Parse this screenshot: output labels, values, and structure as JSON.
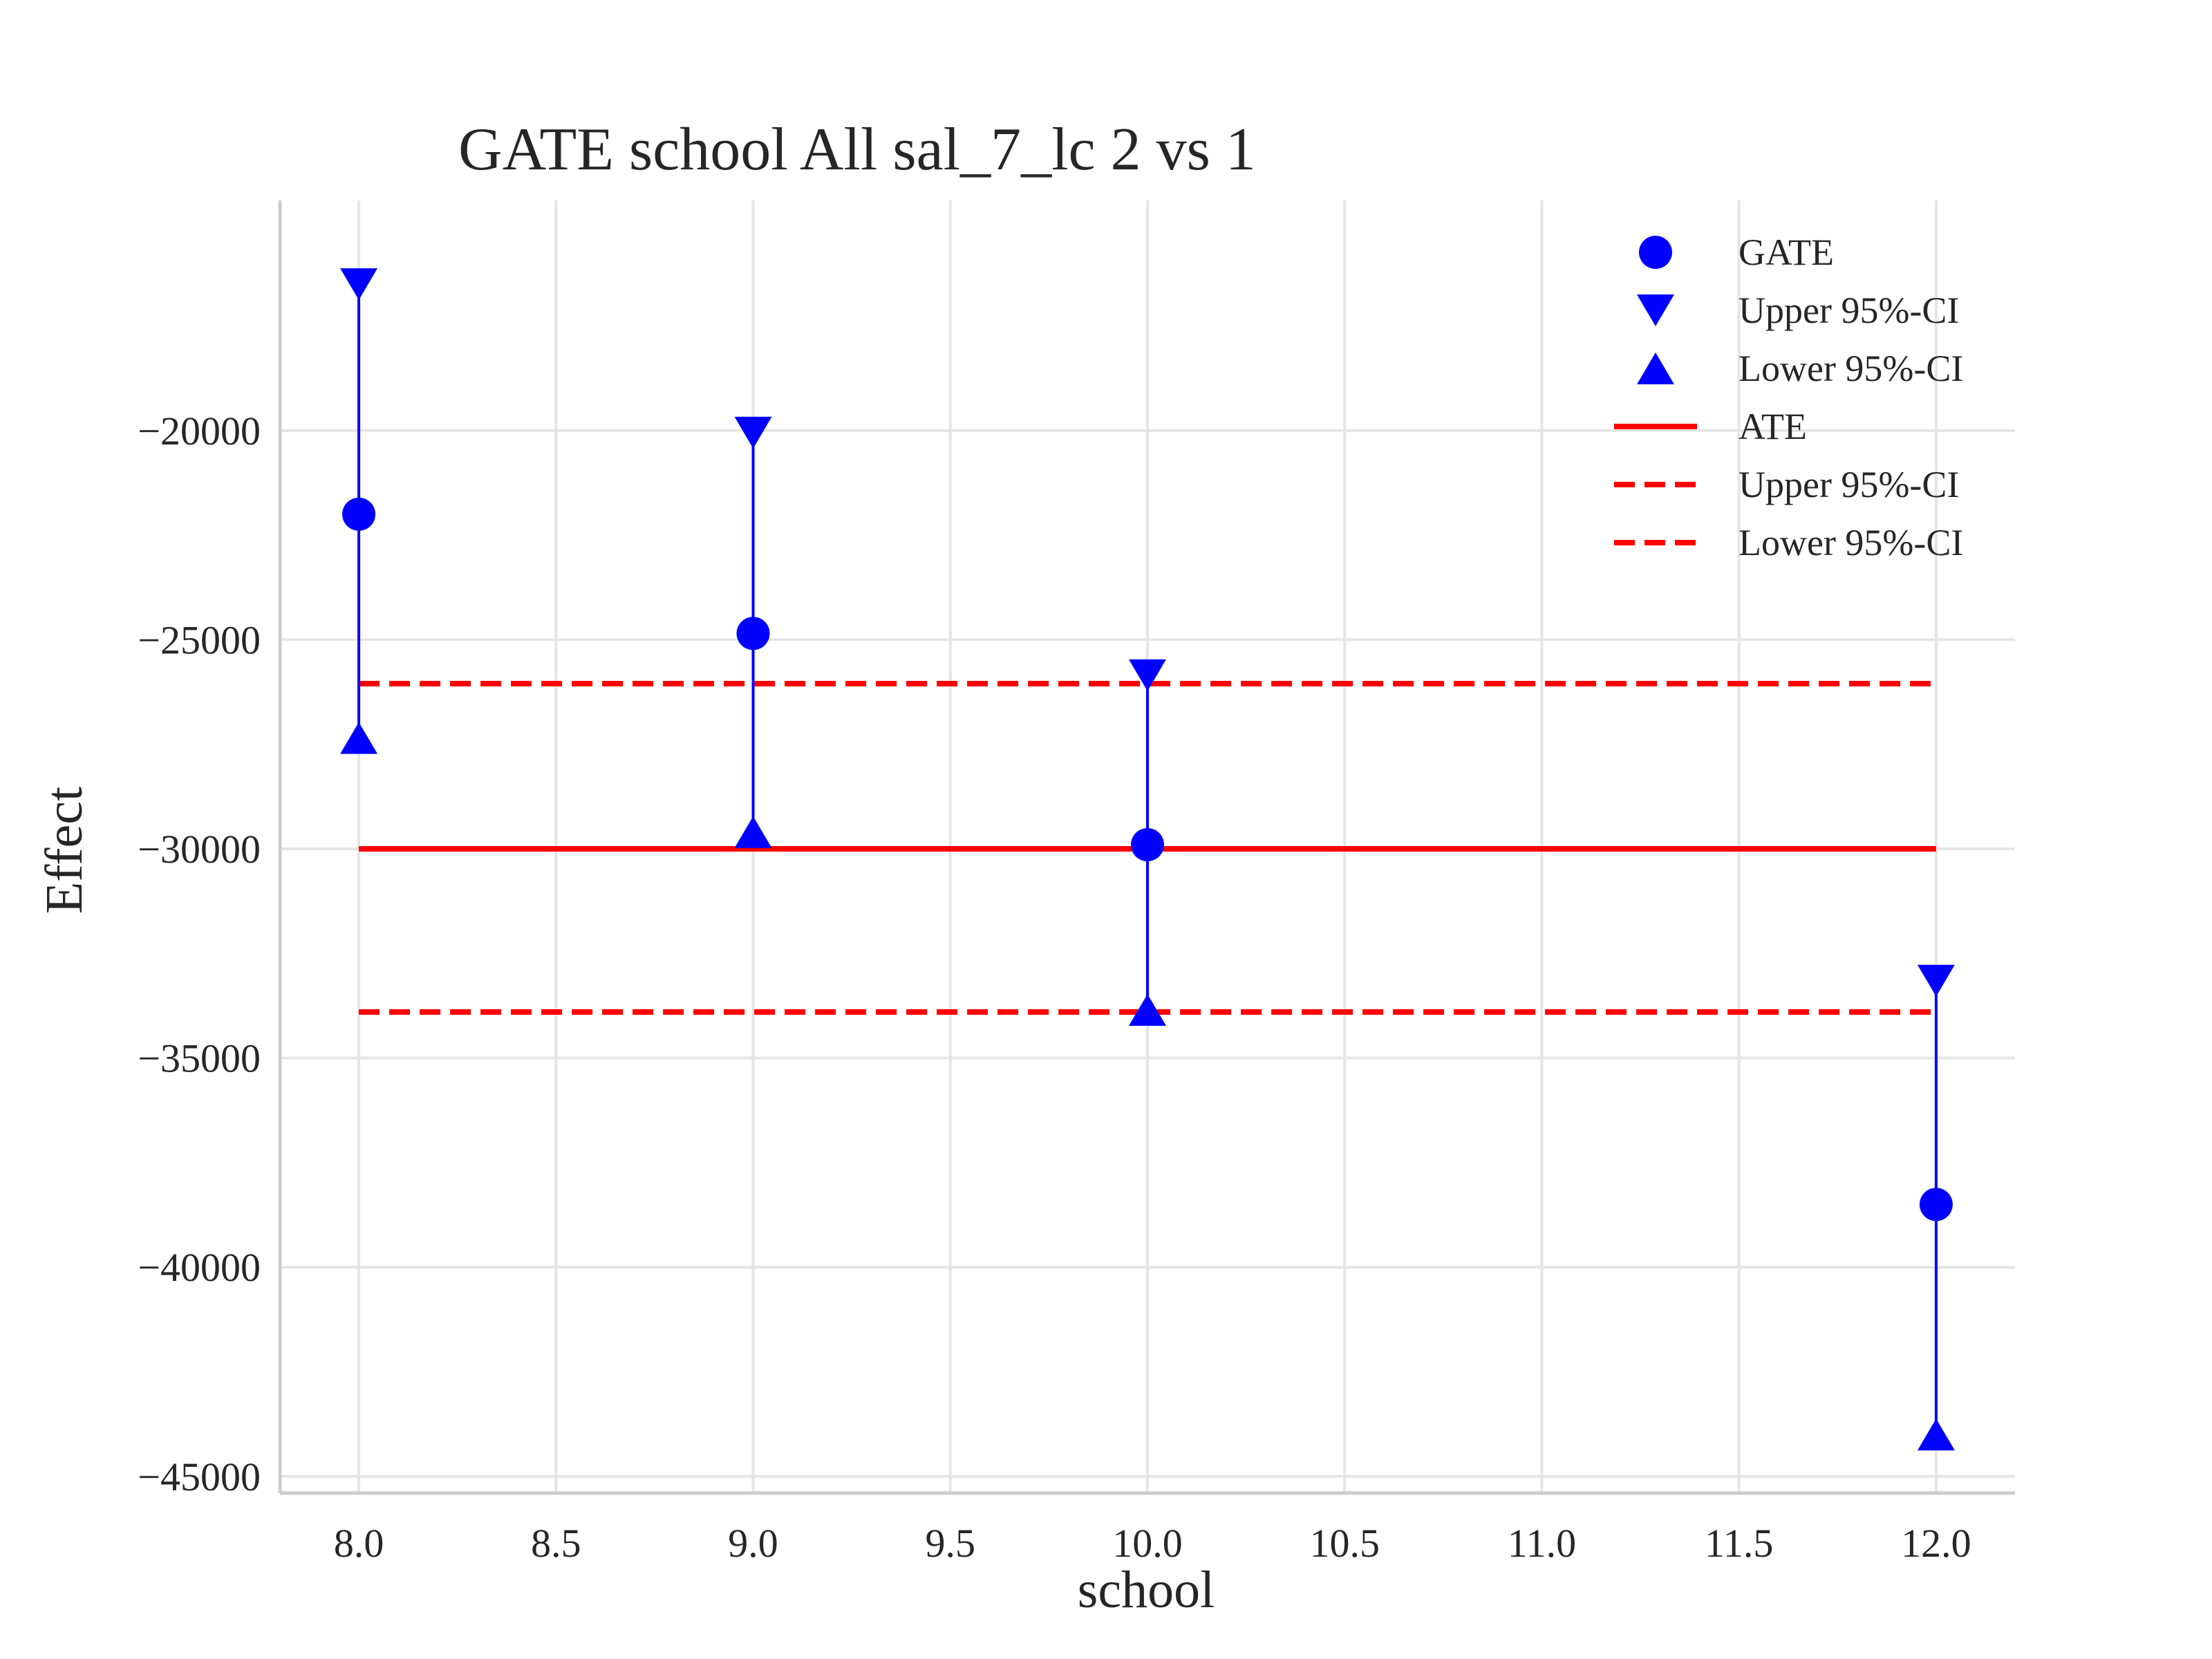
{
  "chart_data": {
    "type": "scatter",
    "title": "GATE school All sal_7_lc  2 vs 1",
    "xlabel": "school",
    "ylabel": "Effect",
    "xlim": [
      7.8,
      12.2
    ],
    "ylim": [
      -45400,
      -14500
    ],
    "x_ticks": [
      8.0,
      8.5,
      9.0,
      9.5,
      10.0,
      10.5,
      11.0,
      11.5,
      12.0
    ],
    "x_tick_labels": [
      "8.0",
      "8.5",
      "9.0",
      "9.5",
      "10.0",
      "10.5",
      "11.0",
      "11.5",
      "12.0"
    ],
    "y_ticks": [
      -20000,
      -25000,
      -30000,
      -35000,
      -40000,
      -45000
    ],
    "y_tick_labels": [
      "−20000",
      "−25000",
      "−30000",
      "−35000",
      "−40000",
      "−45000"
    ],
    "grid": true,
    "legend_position": "top-right",
    "x": [
      8.0,
      9.0,
      10.0,
      12.0
    ],
    "series": [
      {
        "name": "GATE",
        "marker": "circle",
        "color": "#0000ff",
        "values": [
          -22000,
          -24850,
          -29900,
          -38500
        ]
      },
      {
        "name": "Upper 95%-CI",
        "marker": "triangle-down",
        "color": "#0000ff",
        "values": [
          -16500,
          -20050,
          -25850,
          -33150
        ]
      },
      {
        "name": "Lower 95%-CI",
        "marker": "triangle-up",
        "color": "#0000ff",
        "values": [
          -27350,
          -29600,
          -33850,
          -44000
        ]
      },
      {
        "name": "ATE",
        "style": "line",
        "color": "#ff0000",
        "values": [
          -30000,
          -30000
        ]
      },
      {
        "name": "Upper 95%-CI",
        "style": "dashed",
        "color": "#ff0000",
        "values": [
          -26050,
          -26050
        ]
      },
      {
        "name": "Lower 95%-CI",
        "style": "dashed",
        "color": "#ff0000",
        "values": [
          -33900,
          -33900
        ]
      }
    ],
    "reference_line_x_range": [
      8.0,
      12.0
    ]
  }
}
